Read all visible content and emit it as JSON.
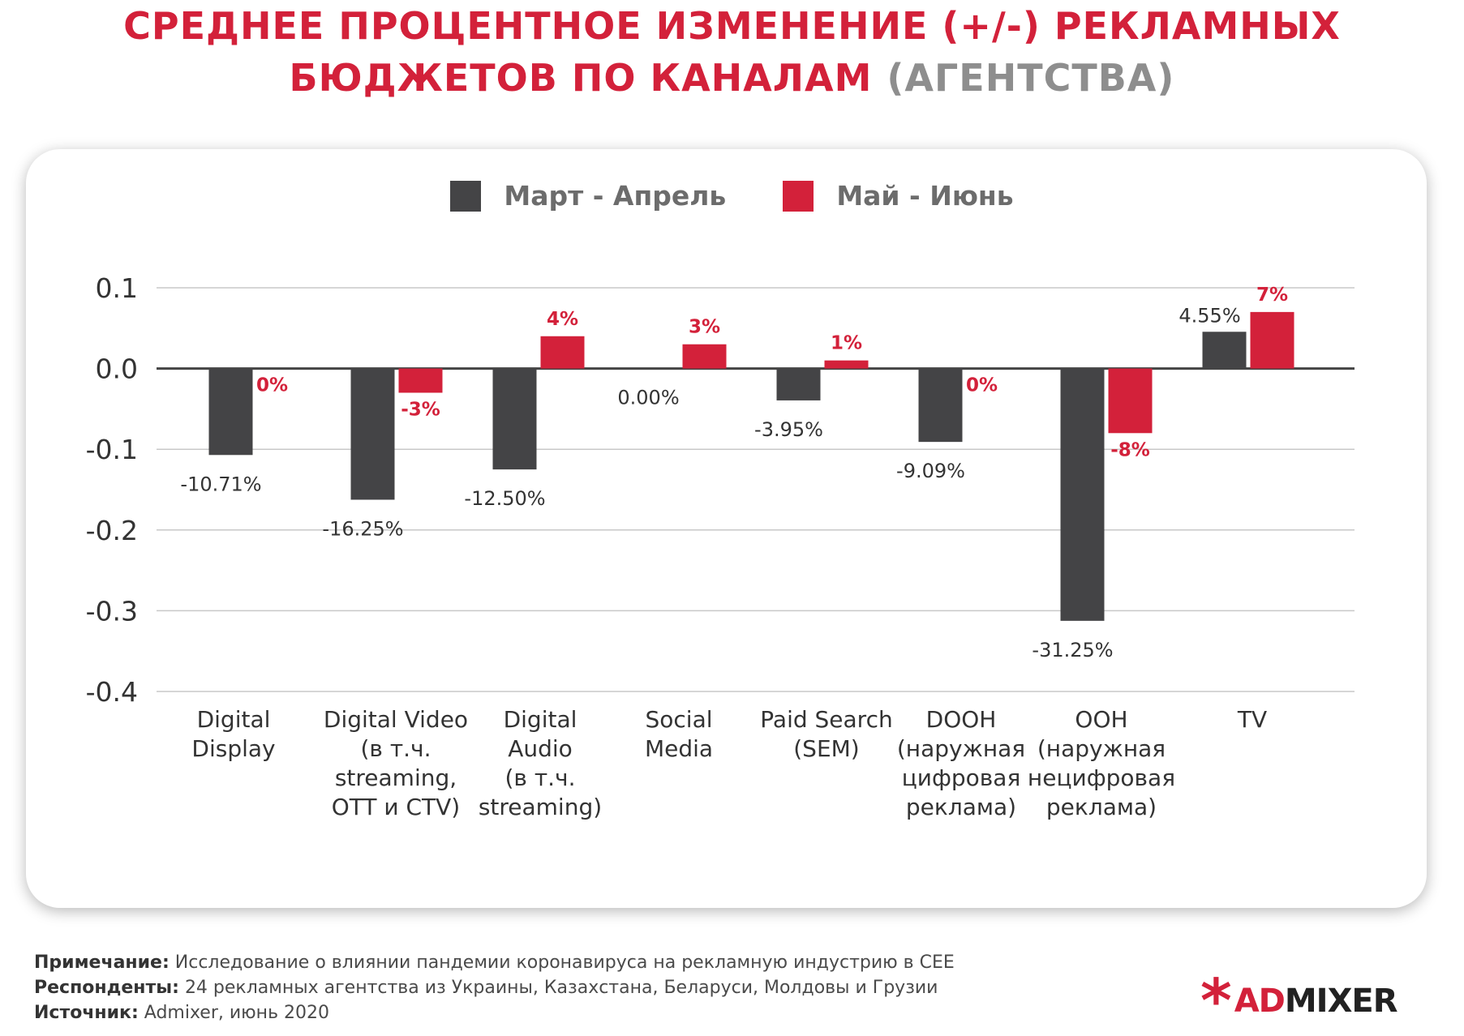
{
  "title": {
    "line1": "СРЕДНЕЕ ПРОЦЕНТНОЕ ИЗМЕНЕНИЕ (+/-) РЕКЛАМНЫХ",
    "line2": "БЮДЖЕТОВ ПО КАНАЛАМ",
    "suffix": "(АГЕНТСТВА)"
  },
  "colors": {
    "series1": "#444446",
    "series2": "#d3213a",
    "grid": "#c8c8c8",
    "axis": "#444444",
    "label1": "#333333",
    "label2": "#d3213a"
  },
  "chart_data": {
    "type": "bar",
    "categories": [
      [
        "Digital",
        "Display"
      ],
      [
        "Digital Video",
        "(в т.ч.",
        "streaming,",
        "OTT и CTV)"
      ],
      [
        "Digital",
        "Audio",
        "(в т.ч.",
        "streaming)"
      ],
      [
        "Social",
        "Media"
      ],
      [
        "Paid Search",
        "(SEM)"
      ],
      [
        "DOOH",
        "(наружная",
        "цифровая",
        "реклама)"
      ],
      [
        "OOH",
        "(наружная",
        "нецифровая",
        "реклама)"
      ],
      [
        "TV"
      ]
    ],
    "series": [
      {
        "name": "Март - Апрель",
        "values": [
          -0.1071,
          -0.1625,
          -0.125,
          0.0,
          -0.0395,
          -0.0909,
          -0.3125,
          0.0455
        ],
        "labels": [
          "-10.71%",
          "-16.25%",
          "-12.50%",
          "0.00%",
          "-3.95%",
          "-9.09%",
          "-31.25%",
          "4.55%"
        ]
      },
      {
        "name": "Май - Июнь",
        "values": [
          0.0,
          -0.03,
          0.04,
          0.03,
          0.01,
          0.0,
          -0.08,
          0.07
        ],
        "labels": [
          "0%",
          "-3%",
          "4%",
          "3%",
          "1%",
          "0%",
          "-8%",
          "7%"
        ]
      }
    ],
    "yticks": [
      "0.1",
      "0.0",
      "-0.1",
      "-0.2",
      "-0.3",
      "-0.4"
    ],
    "ylim": [
      -0.4,
      0.1
    ],
    "grid": true,
    "legend": "top-center"
  },
  "footer": {
    "note_label": "Примечание:",
    "note_text": "Исследование о влиянии пандемии коронавируса на рекламную индустрию в CEE",
    "resp_label": "Респонденты:",
    "resp_text": "24 рекламных агентства из Украины, Казахстана, Беларуси, Молдовы и Грузии",
    "source_label": "Источник:",
    "source_text": "Admixer, июнь 2020"
  },
  "logo": {
    "mark": "*",
    "part1": "AD",
    "part2": "MIXER"
  }
}
